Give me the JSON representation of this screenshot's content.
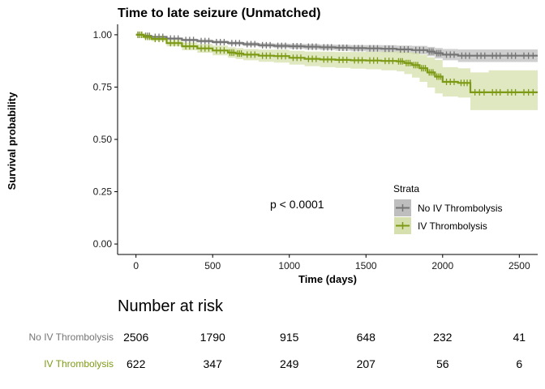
{
  "chart_data": {
    "type": "line",
    "subtype": "kaplan-meier",
    "title": "Time to late seizure (Unmatched)",
    "xlabel": "Time (days)",
    "ylabel": "Survival probability",
    "xlim": [
      -120,
      2620
    ],
    "ylim": [
      -0.05,
      1.05
    ],
    "x_ticks": [
      0,
      500,
      1000,
      1500,
      2000,
      2500
    ],
    "y_ticks": [
      0.0,
      0.25,
      0.5,
      0.75,
      1.0
    ],
    "y_tick_labels": [
      "0.00",
      "0.25",
      "0.50",
      "0.75",
      "1.00"
    ],
    "grid": false,
    "annotation": "p < 0.0001",
    "legend": {
      "title": "Strata",
      "position": "right",
      "entries": [
        "No  IV Thrombolysis",
        "IV Thrombolysis"
      ]
    },
    "series": [
      {
        "name": "No  IV Thrombolysis",
        "color": "#747474",
        "band_color": "#bebebe",
        "x": [
          0,
          50,
          100,
          200,
          300,
          400,
          500,
          600,
          700,
          800,
          900,
          1000,
          1100,
          1200,
          1300,
          1400,
          1500,
          1600,
          1700,
          1800,
          1900,
          1950,
          2000,
          2100,
          2200,
          2300,
          2400,
          2500,
          2620
        ],
        "y": [
          1.0,
          0.995,
          0.99,
          0.982,
          0.975,
          0.97,
          0.965,
          0.96,
          0.955,
          0.95,
          0.947,
          0.945,
          0.943,
          0.94,
          0.938,
          0.936,
          0.935,
          0.933,
          0.93,
          0.927,
          0.92,
          0.912,
          0.905,
          0.9,
          0.9,
          0.9,
          0.9,
          0.9,
          0.9
        ],
        "lower": [
          1.0,
          0.992,
          0.986,
          0.977,
          0.969,
          0.963,
          0.958,
          0.952,
          0.946,
          0.94,
          0.936,
          0.933,
          0.93,
          0.927,
          0.924,
          0.921,
          0.919,
          0.916,
          0.912,
          0.907,
          0.898,
          0.887,
          0.878,
          0.87,
          0.87,
          0.87,
          0.87,
          0.87,
          0.87
        ],
        "upper": [
          1.0,
          0.998,
          0.994,
          0.987,
          0.981,
          0.977,
          0.972,
          0.968,
          0.964,
          0.96,
          0.958,
          0.957,
          0.956,
          0.953,
          0.952,
          0.951,
          0.951,
          0.95,
          0.948,
          0.947,
          0.942,
          0.937,
          0.932,
          0.93,
          0.93,
          0.93,
          0.93,
          0.93,
          0.93
        ]
      },
      {
        "name": "IV Thrombolysis",
        "color": "#7d9a14",
        "band_color": "#d6e0ae",
        "x": [
          0,
          50,
          100,
          200,
          300,
          400,
          500,
          600,
          650,
          700,
          800,
          900,
          1000,
          1100,
          1200,
          1300,
          1400,
          1500,
          1600,
          1700,
          1750,
          1800,
          1850,
          1900,
          1950,
          2000,
          2100,
          2180,
          2181,
          2300,
          2400,
          2500,
          2620
        ],
        "y": [
          1.0,
          0.99,
          0.98,
          0.96,
          0.945,
          0.935,
          0.925,
          0.915,
          0.91,
          0.905,
          0.9,
          0.898,
          0.89,
          0.885,
          0.882,
          0.88,
          0.878,
          0.877,
          0.875,
          0.873,
          0.865,
          0.855,
          0.84,
          0.82,
          0.8,
          0.775,
          0.77,
          0.77,
          0.725,
          0.725,
          0.725,
          0.725,
          0.725
        ],
        "lower": [
          1.0,
          0.982,
          0.97,
          0.945,
          0.926,
          0.914,
          0.902,
          0.89,
          0.884,
          0.878,
          0.871,
          0.867,
          0.857,
          0.85,
          0.845,
          0.842,
          0.838,
          0.835,
          0.83,
          0.825,
          0.812,
          0.795,
          0.775,
          0.748,
          0.72,
          0.705,
          0.7,
          0.7,
          0.64,
          0.64,
          0.64,
          0.64,
          0.64
        ],
        "upper": [
          1.0,
          0.997,
          0.99,
          0.975,
          0.964,
          0.956,
          0.948,
          0.94,
          0.936,
          0.932,
          0.929,
          0.929,
          0.923,
          0.92,
          0.919,
          0.918,
          0.918,
          0.919,
          0.92,
          0.921,
          0.918,
          0.915,
          0.905,
          0.892,
          0.88,
          0.845,
          0.84,
          0.84,
          0.82,
          0.83,
          0.83,
          0.83,
          0.83
        ]
      }
    ]
  },
  "risk_table": {
    "title": "Number at risk",
    "times": [
      0,
      500,
      1000,
      1500,
      2000,
      2500
    ],
    "rows": [
      {
        "label": "No  IV Thrombolysis",
        "color": "#747474",
        "values": [
          2506,
          1790,
          915,
          648,
          232,
          41
        ]
      },
      {
        "label": "IV Thrombolysis",
        "color": "#7d9a14",
        "values": [
          622,
          347,
          249,
          207,
          56,
          6
        ]
      }
    ]
  }
}
